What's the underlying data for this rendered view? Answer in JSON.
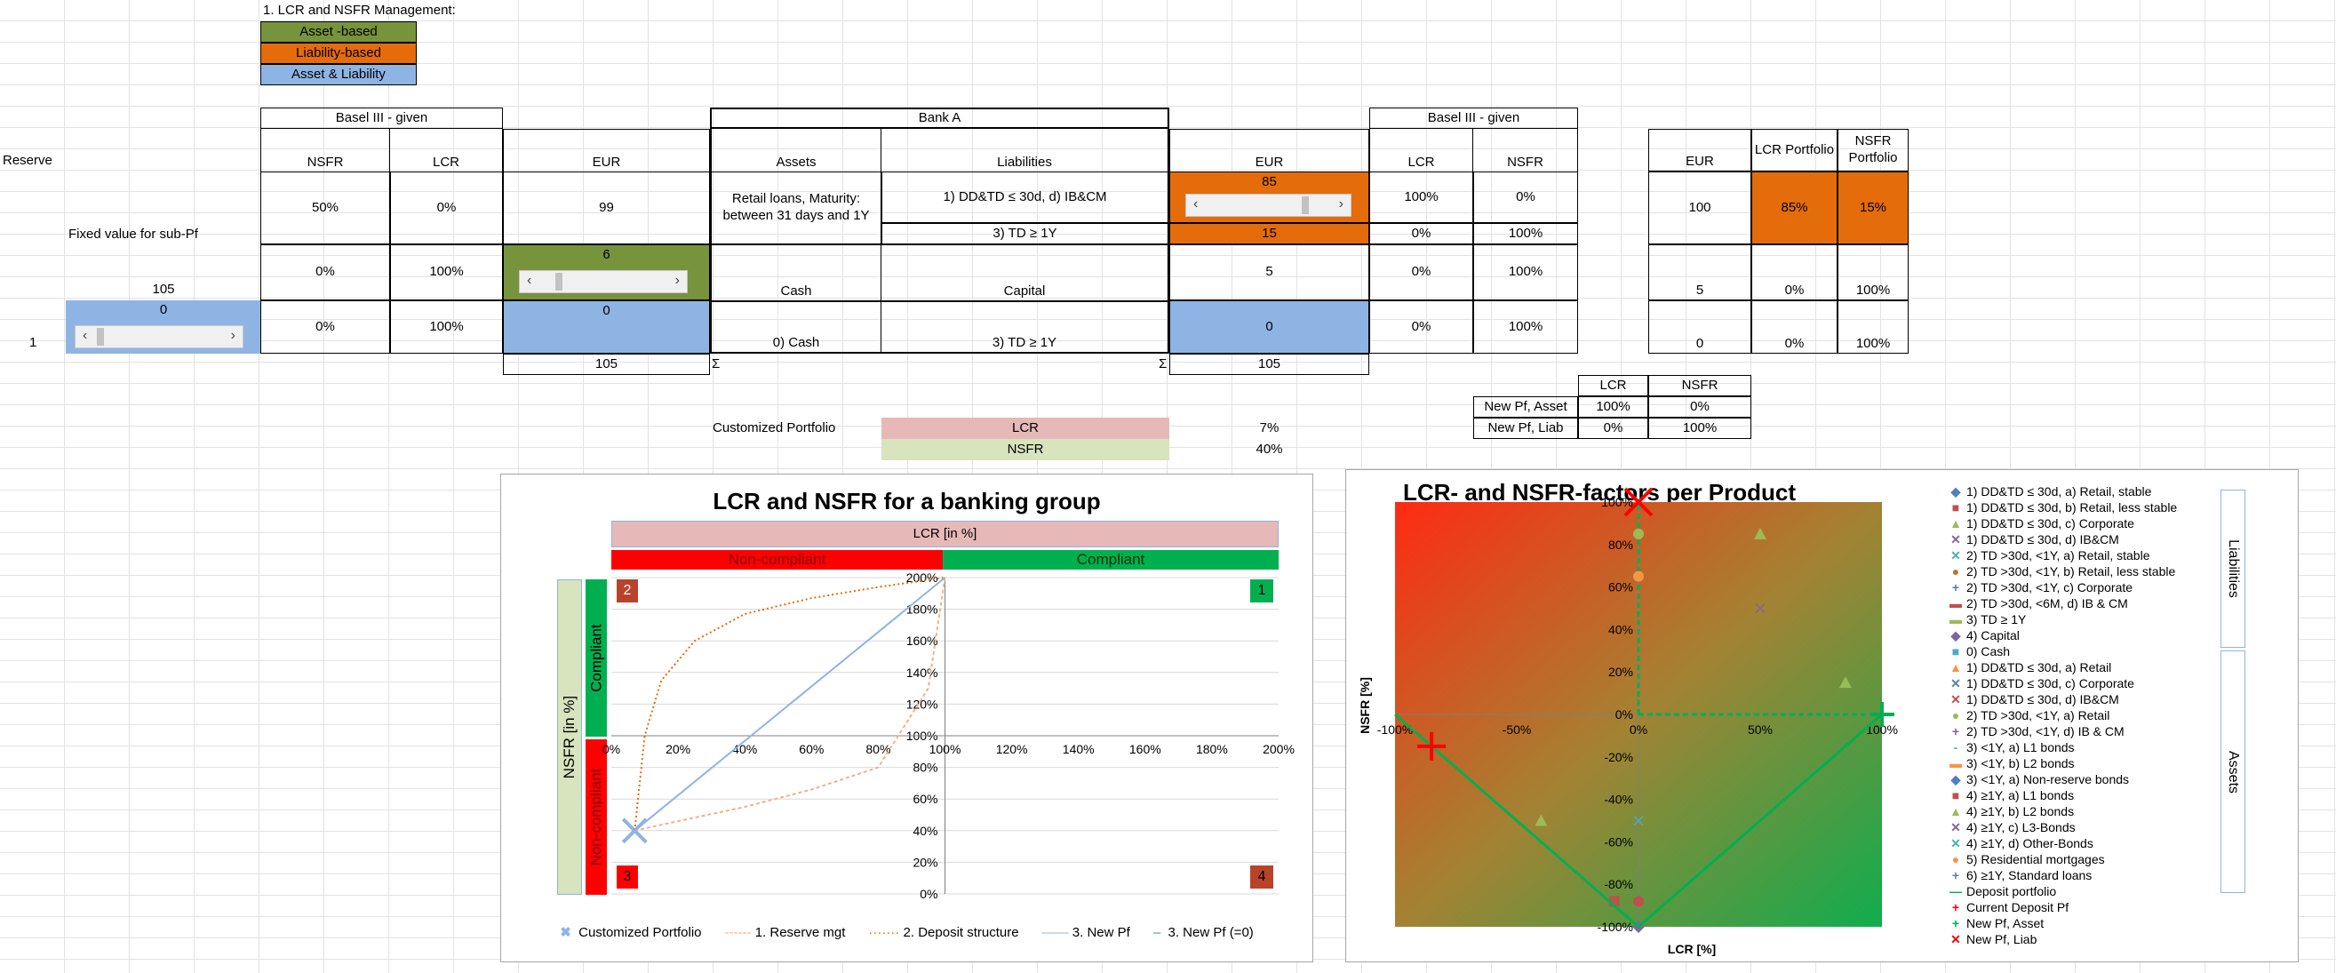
{
  "header": {
    "title": "1. LCR and NSFR Management:"
  },
  "legend_boxes": [
    "Asset -based",
    "Liability-based",
    "Asset & Liability"
  ],
  "left": {
    "reserve": "Reserve",
    "fixed_label": "Fixed value for sub-Pf",
    "fixed_value": "105",
    "row_index": "1",
    "blue_value": "0"
  },
  "basel_left": {
    "title": "Basel III - given",
    "h_nsfr": "NSFR",
    "h_lcr": "LCR",
    "r1": [
      "50%",
      "0%"
    ],
    "r2": [
      "0%",
      "100%"
    ],
    "r3": [
      "0%",
      "100%"
    ]
  },
  "eur_left": {
    "h": "EUR",
    "v1": "99",
    "v2": "6",
    "v3": "0",
    "sum": "105"
  },
  "bank": {
    "title": "Bank A",
    "h_assets": "Assets",
    "h_liab": "Liabilities",
    "asset1": "Retail loans, Maturity: between 31 days and 1Y",
    "liab1a": "1) DD&TD ≤ 30d, d) IB&CM",
    "liab1b": "3) TD ≥ 1Y",
    "asset2": "Cash",
    "liab2": "Capital",
    "asset3": "0) Cash",
    "liab3": "3) TD ≥ 1Y",
    "sigma_left": "Σ",
    "sigma_right": "Σ"
  },
  "eur_right": {
    "h": "EUR",
    "v1a": "85",
    "v1b": "15",
    "v2": "5",
    "v3": "0",
    "sum": "105"
  },
  "basel_right": {
    "title": "Basel III - given",
    "h_lcr": "LCR",
    "h_nsfr": "NSFR",
    "r1a": [
      "100%",
      "0%"
    ],
    "r1b": [
      "0%",
      "100%"
    ],
    "r2": [
      "0%",
      "100%"
    ],
    "r3": [
      "0%",
      "100%"
    ]
  },
  "far": {
    "h_eur": "EUR",
    "h_lcr": "LCR Portfolio",
    "h_nsfr": "NSFR Portfolio",
    "r1": [
      "100",
      "85%",
      "15%"
    ],
    "r2": [
      "5",
      "0%",
      "100%"
    ],
    "r3": [
      "0",
      "0%",
      "100%"
    ]
  },
  "newpf": {
    "h_lcr": "LCR",
    "h_nsfr": "NSFR",
    "asset": [
      "New Pf, Asset",
      "100%",
      "0%"
    ],
    "liab": [
      "New Pf, Liab",
      "0%",
      "100%"
    ]
  },
  "custom": {
    "label": "Customized Portfolio",
    "lcr": "LCR",
    "nsfr": "NSFR",
    "lcr_val": "7%",
    "nsfr_val": "40%"
  },
  "chart1": {
    "title": "LCR and NSFR for a banking group",
    "top_band": "LCR [in %]",
    "noncompliant": "Non-compliant",
    "compliant": "Compliant",
    "ylabel": "NSFR [in %]",
    "y_compliant": "Compliant",
    "y_noncompliant": "Non-compliant",
    "q1": "1",
    "q2": "2",
    "q3": "3",
    "q4": "4",
    "legend": [
      "Customized Portfolio",
      "1. Reserve mgt",
      "2. Deposit structure",
      "3. New Pf",
      "3. New Pf (=0)"
    ]
  },
  "chart2": {
    "title": "LCR- and NSFR-factors per Product",
    "xlabel": "LCR [%]",
    "ylabel": "NSFR [%]",
    "group_liab": "Liabilities",
    "group_assets": "Assets",
    "legend": [
      "1) DD&TD ≤ 30d, a) Retail, stable",
      "1) DD&TD ≤ 30d, b) Retail, less stable",
      "1) DD&TD ≤ 30d, c) Corporate",
      "1) DD&TD ≤ 30d, d) IB&CM",
      "2) TD >30d, <1Y, a) Retail, stable",
      "2) TD >30d, <1Y, b) Retail, less stable",
      "2) TD >30d, <1Y, c) Corporate",
      "2) TD >30d, <6M, d) IB & CM",
      "3) TD ≥ 1Y",
      "4) Capital",
      "0) Cash",
      "1) DD&TD ≤ 30d, a) Retail",
      "1) DD&TD ≤ 30d, c) Corporate",
      "1) DD&TD ≤ 30d, d) IB&CM",
      "2) TD >30d, <1Y, a) Retail",
      "2) TD >30d, <1Y, d) IB & CM",
      "3) <1Y, a) L1 bonds",
      "3) <1Y, b) L2 bonds",
      "3) <1Y, a) Non-reserve bonds",
      "4) ≥1Y, a) L1 bonds",
      "4) ≥1Y, b) L2 bonds",
      "4) ≥1Y, c) L3-Bonds",
      "4) ≥1Y, d) Other-Bonds",
      "5) Residential mortgages",
      "6) ≥1Y, Standard loans",
      "Deposit portfolio",
      "Current Deposit Pf",
      "New Pf, Asset",
      "New Pf, Liab"
    ]
  },
  "chart_data": [
    {
      "type": "scatter",
      "title": "LCR and NSFR for a banking group",
      "xlabel": "LCR [in %]",
      "ylabel": "NSFR [in %]",
      "xlim": [
        0,
        200
      ],
      "ylim": [
        0,
        200
      ],
      "x_ticks": [
        "0%",
        "20%",
        "40%",
        "60%",
        "80%",
        "100%",
        "120%",
        "140%",
        "160%",
        "180%",
        "200%"
      ],
      "y_ticks": [
        "0%",
        "20%",
        "40%",
        "60%",
        "80%",
        "100%",
        "120%",
        "140%",
        "160%",
        "180%",
        "200%"
      ],
      "grid": true,
      "legend": "bottom",
      "series": [
        {
          "name": "Customized Portfolio",
          "x": [
            7
          ],
          "y": [
            40
          ]
        },
        {
          "name": "1. Reserve mgt",
          "x": [
            7,
            20,
            40,
            60,
            80,
            95,
            100
          ],
          "y": [
            40,
            46,
            55,
            66,
            80,
            130,
            200
          ]
        },
        {
          "name": "2. Deposit structure",
          "x": [
            7,
            10,
            15,
            25,
            40,
            60,
            80,
            100
          ],
          "y": [
            40,
            100,
            135,
            160,
            177,
            187,
            194,
            200
          ]
        },
        {
          "name": "3. New Pf",
          "x": [
            7,
            100
          ],
          "y": [
            40,
            200
          ]
        },
        {
          "name": "3. New Pf (=0)",
          "x": [],
          "y": []
        }
      ]
    },
    {
      "type": "scatter",
      "title": "LCR- and NSFR-factors per Product",
      "xlabel": "LCR [%]",
      "ylabel": "NSFR [%]",
      "xlim": [
        -100,
        100
      ],
      "ylim": [
        -100,
        100
      ],
      "x_ticks": [
        "-100%",
        "-50%",
        "0%",
        "50%",
        "100%"
      ],
      "y_ticks": [
        "-100%",
        "-80%",
        "-60%",
        "-40%",
        "-20%",
        "0%",
        "20%",
        "40%",
        "60%",
        "80%",
        "100%"
      ],
      "legend": "right",
      "series": [
        {
          "name": "1) DD&TD ≤ 30d, c) Corporate",
          "x": [
            50
          ],
          "y": [
            85
          ]
        },
        {
          "name": "1) DD&TD ≤ 30d, d) IB&CM",
          "x": [
            50
          ],
          "y": [
            50
          ]
        },
        {
          "name": "2) TD >30d, <1Y, a) Retail, stable",
          "x": [
            0
          ],
          "y": [
            -50
          ]
        },
        {
          "name": "2) TD >30d, <1Y, a) Retail",
          "x": [
            0
          ],
          "y": [
            85
          ]
        },
        {
          "name": "5) Residential mortgages",
          "x": [
            0
          ],
          "y": [
            65
          ]
        },
        {
          "name": "4) ≥1Y, b) L2 bonds",
          "x": [
            -40
          ],
          "y": [
            -50
          ]
        },
        {
          "name": "3) <1Y, b) L2 bonds",
          "x": [
            85
          ],
          "y": [
            15
          ]
        },
        {
          "name": "4) ≥1Y, a) L1 bonds",
          "x": [
            -10
          ],
          "y": [
            -88
          ]
        },
        {
          "name": "2) TD >30d, <1Y, b) Retail, less stable",
          "x": [
            0
          ],
          "y": [
            -88
          ]
        },
        {
          "name": "4) Capital",
          "x": [
            0
          ],
          "y": [
            -100
          ]
        },
        {
          "name": "Deposit portfolio",
          "x": [
            -100,
            0,
            100
          ],
          "y": [
            0,
            -100,
            0
          ]
        },
        {
          "name": "Current Deposit Pf",
          "x": [
            -85
          ],
          "y": [
            -15
          ]
        },
        {
          "name": "New Pf, Asset",
          "x": [
            100
          ],
          "y": [
            0
          ]
        },
        {
          "name": "New Pf, Liab",
          "x": [
            0
          ],
          "y": [
            100
          ]
        }
      ]
    }
  ],
  "colors": {
    "green": "#77933c",
    "orange": "#e46c0a",
    "blue": "#8eb4e3",
    "red": "#ff0000",
    "teal": "#00b050"
  }
}
